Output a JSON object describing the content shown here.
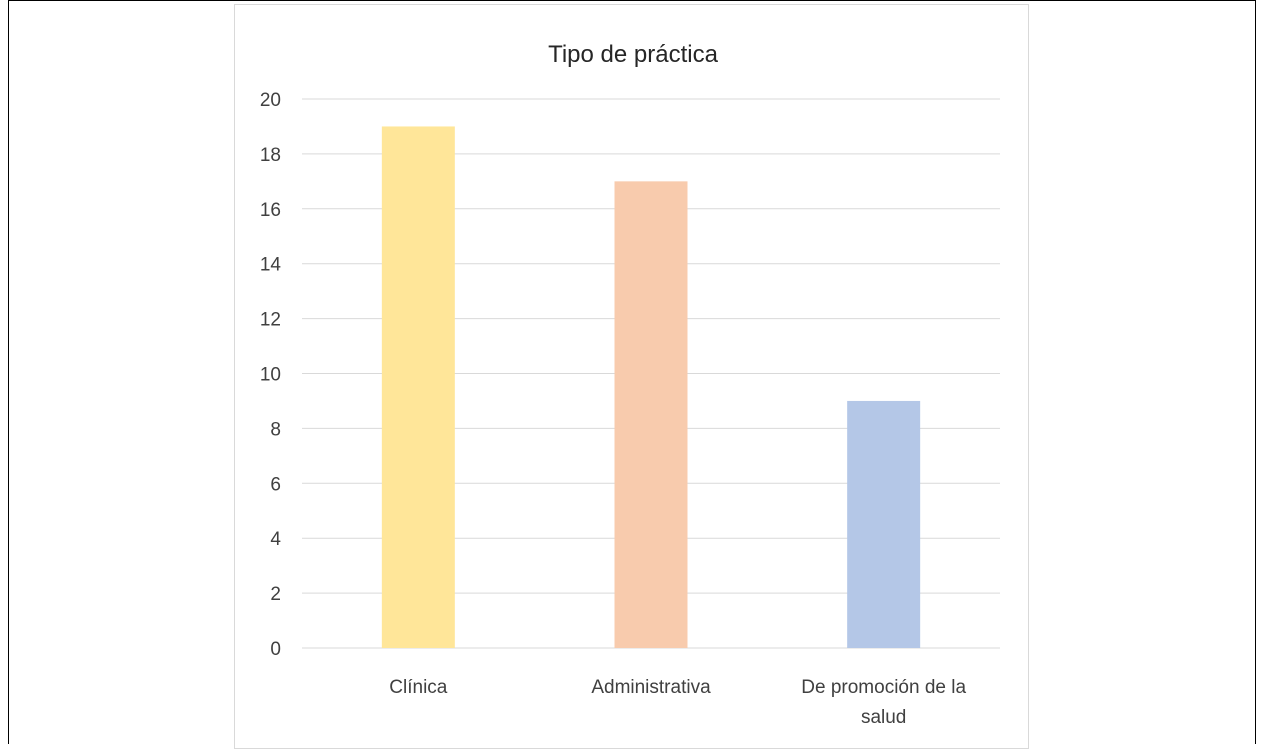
{
  "chart_data": {
    "type": "bar",
    "title": "Tipo de práctica",
    "categories": [
      "Clínica",
      "Administrativa",
      "De promoción de la salud"
    ],
    "category_lines": [
      [
        "Clínica"
      ],
      [
        "Administrativa"
      ],
      [
        "De promoción de la",
        "salud"
      ]
    ],
    "values": [
      19,
      17,
      9
    ],
    "bar_colors": [
      "#ffe699",
      "#f8cbad",
      "#b4c7e7"
    ],
    "ylim": [
      0,
      20
    ],
    "yticks": [
      0,
      2,
      4,
      6,
      8,
      10,
      12,
      14,
      16,
      18,
      20
    ],
    "grid": true,
    "legend": "none",
    "xlabel": "",
    "ylabel": ""
  },
  "colors": {
    "grid": "#d9d9d9",
    "axis_text": "#404040",
    "title_text": "#262626"
  }
}
